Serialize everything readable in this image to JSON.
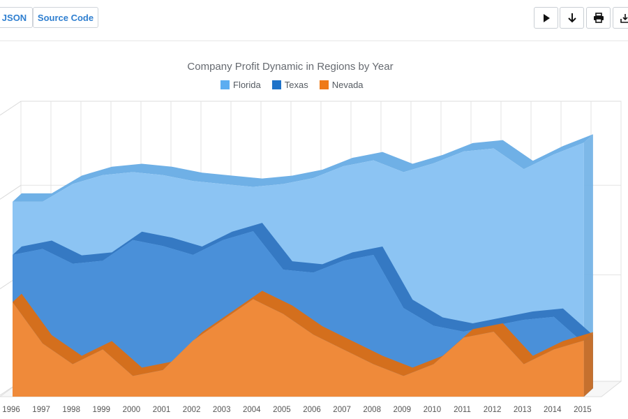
{
  "toolbar": {
    "tabs": [
      {
        "label": "JSON"
      },
      {
        "label": "Source Code"
      }
    ],
    "buttons": [
      "play-icon",
      "download-icon",
      "print-icon",
      "export-icon"
    ]
  },
  "chart_data": {
    "type": "area",
    "stacked": false,
    "three_d": true,
    "title": "Company Profit Dynamic in Regions by Year",
    "xlabel": "",
    "ylabel": "",
    "legend_position": "top",
    "grid": true,
    "categories": [
      "1996",
      "1997",
      "1998",
      "1999",
      "2000",
      "2001",
      "2002",
      "2003",
      "2004",
      "2005",
      "2006",
      "2007",
      "2008",
      "2009",
      "2010",
      "2011",
      "2012",
      "2013",
      "2014",
      "2015"
    ],
    "ylim": [
      0,
      100
    ],
    "series": [
      {
        "name": "Florida",
        "color": "#8cc4f3",
        "edge": "#6fb0e6",
        "values": [
          66,
          66,
          72,
          75,
          76,
          75,
          73,
          72,
          71,
          72,
          74,
          78,
          80,
          76,
          79,
          83,
          84,
          77,
          82,
          86
        ]
      },
      {
        "name": "Texas",
        "color": "#4a90d9",
        "edge": "#3579c3",
        "values": [
          48,
          50,
          45,
          46,
          53,
          51,
          48,
          53,
          56,
          43,
          42,
          46,
          48,
          30,
          24,
          22,
          24,
          26,
          27,
          18
        ]
      },
      {
        "name": "Nevada",
        "color": "#ef8a3a",
        "edge": "#d46f1d",
        "values": [
          32,
          18,
          11,
          16,
          7,
          9,
          19,
          26,
          33,
          28,
          21,
          16,
          11,
          7,
          11,
          20,
          22,
          11,
          16,
          19
        ]
      }
    ]
  }
}
